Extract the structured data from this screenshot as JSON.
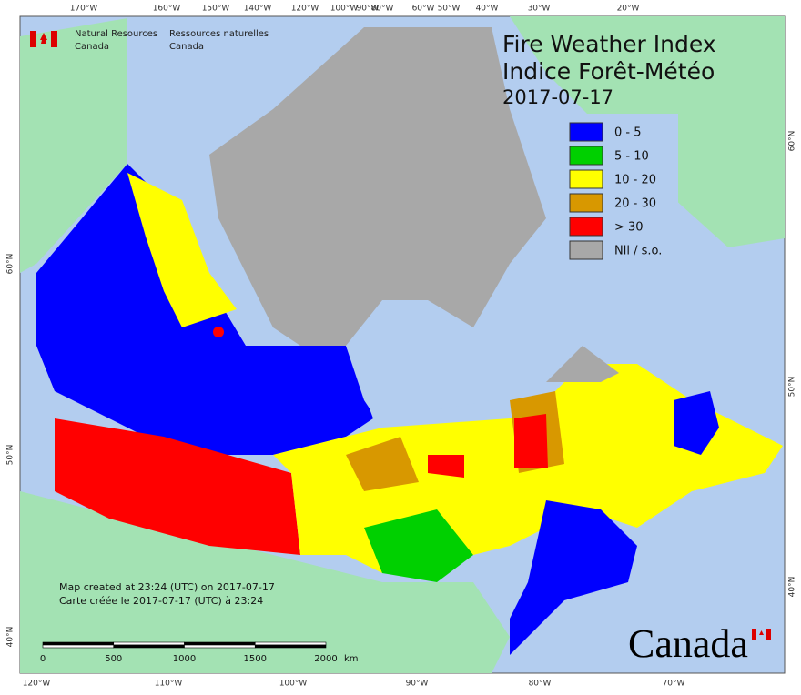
{
  "agency_en": [
    "Natural Resources",
    "Canada"
  ],
  "agency_fr": [
    "Ressources naturelles",
    "Canada"
  ],
  "title": [
    "Fire Weather Index",
    "Indice Forêt-Météo"
  ],
  "date": "2017-07-17",
  "legend": [
    {
      "label": "0 - 5",
      "color": "#0000ff"
    },
    {
      "label": "5 - 10",
      "color": "#00d000"
    },
    {
      "label": "10 - 20",
      "color": "#ffff00"
    },
    {
      "label": "20 - 30",
      "color": "#d89800"
    },
    {
      "label": "> 30",
      "color": "#ff0000"
    },
    {
      "label": "Nil / s.o.",
      "color": "#a8a8a8"
    }
  ],
  "top_longitudes": [
    "170°W",
    "160°W",
    "150°W",
    "140°W",
    "120°W",
    "100°W",
    "90°W",
    "80°W",
    "60°W",
    "50°W",
    "40°W",
    "30°W",
    "20°W"
  ],
  "bottom_longitudes": [
    "120°W",
    "110°W",
    "100°W",
    "90°W",
    "80°W",
    "70°W"
  ],
  "left_latitudes": [
    "60°N",
    "50°N",
    "40°N"
  ],
  "right_latitudes": [
    "60°N",
    "50°N",
    "40°N"
  ],
  "notes": [
    "Map created at 23:24 (UTC) on 2017-07-17",
    "Carte créée le 2017-07-17 (UTC) à 23:24"
  ],
  "scale_bar": {
    "labels": [
      "0",
      "500",
      "1000",
      "1500",
      "2000"
    ],
    "unit": "km"
  },
  "wordmark": "Canada"
}
